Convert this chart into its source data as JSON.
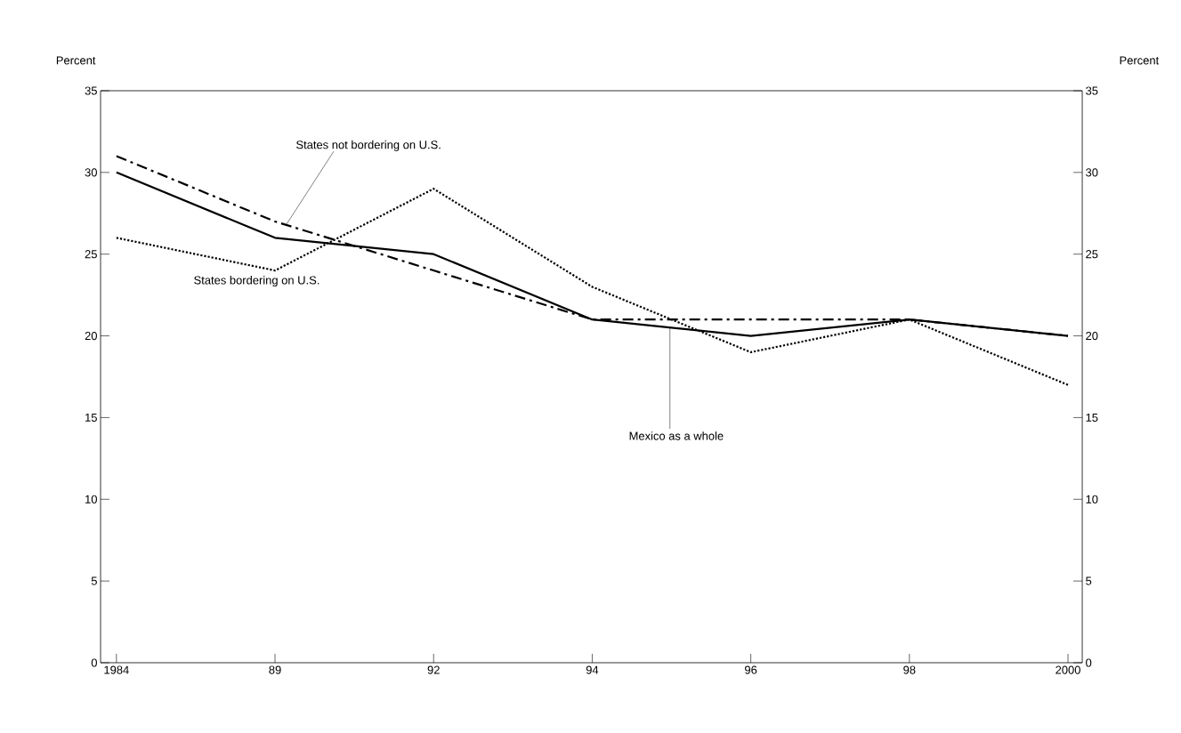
{
  "chart_data": {
    "type": "line",
    "ylabel": "Percent",
    "y2label": "Percent",
    "categories": [
      "1984",
      "89",
      "92",
      "94",
      "96",
      "98",
      "2000"
    ],
    "ylim": [
      0,
      35
    ],
    "yticks": [
      0,
      5,
      10,
      15,
      20,
      25,
      30,
      35
    ],
    "y2lim": [
      0,
      35
    ],
    "y2ticks": [
      0,
      5,
      10,
      15,
      20,
      25,
      30,
      35
    ],
    "legend": false,
    "grid": false,
    "series": [
      {
        "name": "Mexico as a whole",
        "color": "#000000",
        "line_style": "solid",
        "values": [
          30,
          26,
          25,
          21,
          20,
          21,
          20
        ]
      },
      {
        "name": "States not bordering on U.S.",
        "color": "#000000",
        "line_style": "dashdot",
        "values": [
          31,
          27,
          24,
          21,
          21,
          21,
          20
        ]
      },
      {
        "name": "States bordering on U.S.",
        "color": "#000000",
        "line_style": "dotted",
        "values": [
          26,
          24,
          29,
          23,
          19,
          21,
          17
        ]
      }
    ]
  }
}
